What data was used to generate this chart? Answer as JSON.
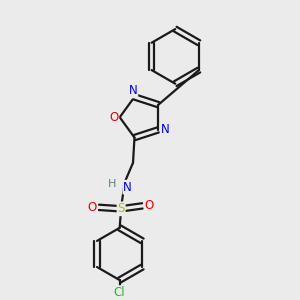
{
  "background_color": "#ebebeb",
  "bond_color": "#1a1a1a",
  "bond_lw": 1.6,
  "dbl_off": 0.09,
  "atom_colors": {
    "N": "#0000ee",
    "O": "#ee0000",
    "S": "#bbbb00",
    "Cl": "#22bb22",
    "H": "#5a8080",
    "C": "#1a1a1a"
  },
  "fontsize": 8.5,
  "xlim": [
    0,
    10
  ],
  "ylim": [
    0,
    10
  ]
}
